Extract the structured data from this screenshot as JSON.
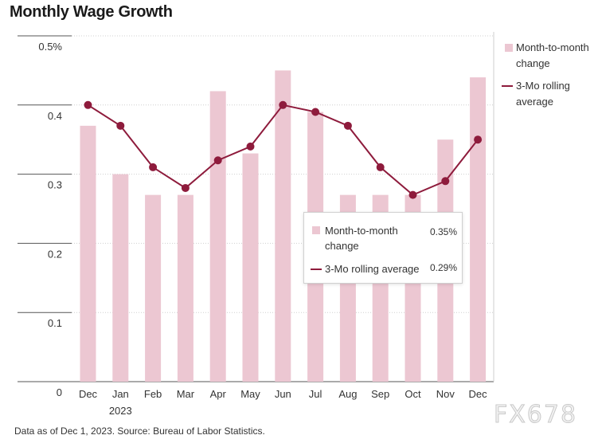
{
  "title": "Monthly Wage Growth",
  "footer": "Data as of Dec 1, 2023. Source: Bureau of Labor Statistics.",
  "watermark": "FX678",
  "chart_data": {
    "type": "bar",
    "categories": [
      "Dec",
      "Jan",
      "Feb",
      "Mar",
      "Apr",
      "May",
      "Jun",
      "Jul",
      "Aug",
      "Sep",
      "Oct",
      "Nov",
      "Dec"
    ],
    "x_sublabels": [
      "",
      "2023",
      "",
      "",
      "",
      "",
      "",
      "",
      "",
      "",
      "",
      "",
      ""
    ],
    "series": [
      {
        "name": "Month-to-month change",
        "type": "bar",
        "values": [
          0.37,
          0.3,
          0.27,
          0.27,
          0.42,
          0.33,
          0.45,
          0.39,
          0.27,
          0.27,
          0.27,
          0.35,
          0.44
        ]
      },
      {
        "name": "3-Mo rolling average",
        "type": "line",
        "values": [
          0.4,
          0.37,
          0.31,
          0.28,
          0.32,
          0.34,
          0.4,
          0.39,
          0.37,
          0.31,
          0.27,
          0.29,
          0.35
        ]
      }
    ],
    "yticks": [
      "0",
      "0.1",
      "0.2",
      "0.3",
      "0.4",
      "0.5%"
    ],
    "ylim": [
      0,
      0.5
    ],
    "legend_position": "right",
    "colors": {
      "bar": "#ecc7d2",
      "line": "#8e1b3c",
      "grid": "#cfcfcf"
    },
    "tooltip": {
      "rows": [
        {
          "label": "Month-to-month change",
          "value": "0.35%"
        },
        {
          "label": "3-Mo rolling average",
          "value": "0.29%"
        }
      ]
    }
  }
}
